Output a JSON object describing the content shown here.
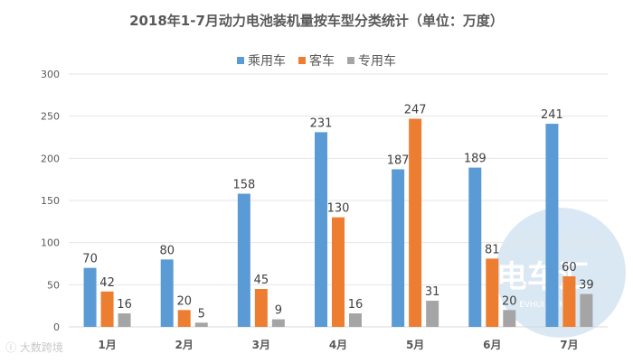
{
  "chart_data": {
    "type": "bar",
    "title": "2018年1-7月动力电池装机量按车型分类统计（单位：万度）",
    "categories": [
      "1月",
      "2月",
      "3月",
      "4月",
      "5月",
      "6月",
      "7月"
    ],
    "series": [
      {
        "name": "乘用车",
        "color": "#5b9bd5",
        "values": [
          70,
          80,
          158,
          231,
          187,
          189,
          241
        ]
      },
      {
        "name": "客车",
        "color": "#ed7d31",
        "values": [
          42,
          20,
          45,
          130,
          247,
          81,
          60
        ]
      },
      {
        "name": "专用车",
        "color": "#a5a5a5",
        "values": [
          16,
          5,
          9,
          16,
          31,
          20,
          39
        ]
      }
    ],
    "ylim": [
      0,
      300
    ],
    "yticks": [
      0,
      50,
      100,
      150,
      200,
      250,
      300
    ],
    "grid": true,
    "legend_position": "top-center",
    "xlabel": "",
    "ylabel": ""
  },
  "watermarks": {
    "left_text": "大数跨境",
    "right_logo_text": "电车汇",
    "right_logo_sub": "EVHUI.COM"
  }
}
